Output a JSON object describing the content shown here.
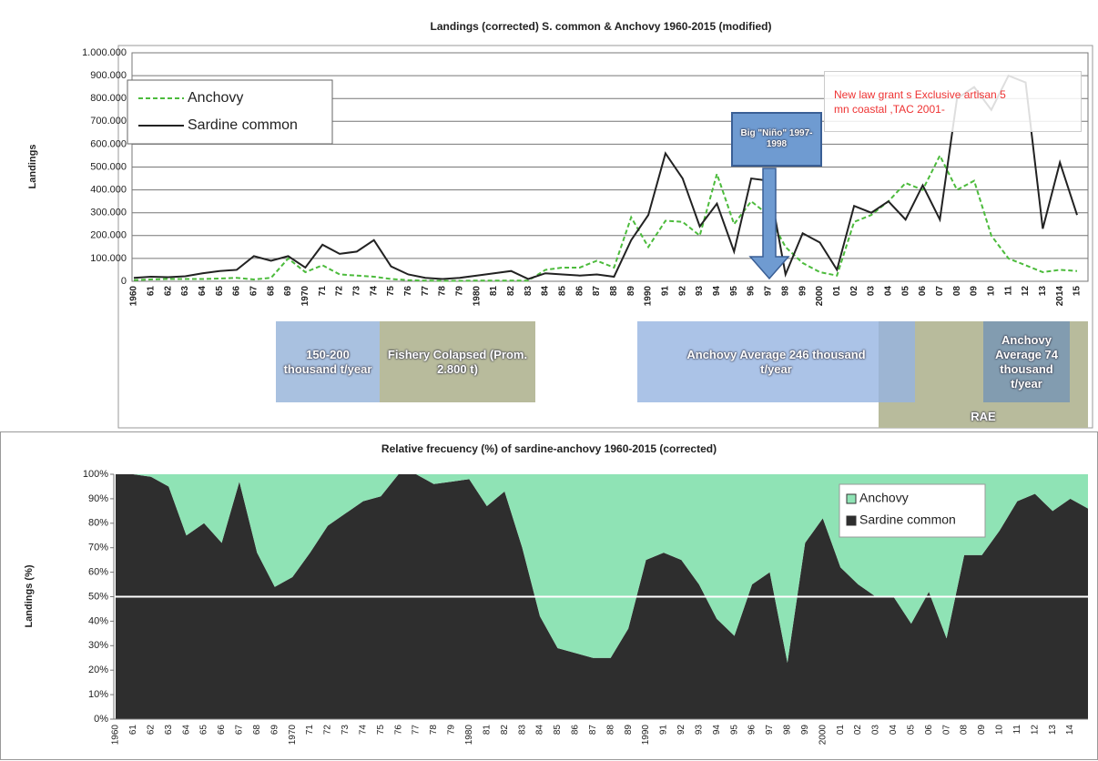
{
  "chart_data": [
    {
      "type": "line",
      "title": "Landings  (corrected) S. common & Anchovy 1960-2015 (modified)",
      "y_label": "Landings",
      "categories": [
        "1960",
        "61",
        "62",
        "63",
        "64",
        "65",
        "66",
        "67",
        "68",
        "69",
        "1970",
        "71",
        "72",
        "73",
        "74",
        "75",
        "76",
        "77",
        "78",
        "79",
        "1980",
        "81",
        "82",
        "83",
        "84",
        "85",
        "86",
        "87",
        "88",
        "89",
        "1990",
        "91",
        "92",
        "93",
        "94",
        "95",
        "96",
        "97",
        "98",
        "99",
        "2000",
        "01",
        "02",
        "03",
        "04",
        "05",
        "06",
        "07",
        "08",
        "09",
        "10",
        "11",
        "12",
        "13",
        "2014",
        "15"
      ],
      "series": [
        {
          "name": "Anchovy",
          "color": "#4cbb3c",
          "style": "dashed",
          "values": [
            5000,
            8000,
            10000,
            10000,
            10000,
            12000,
            15000,
            8000,
            15000,
            100000,
            40000,
            70000,
            30000,
            25000,
            20000,
            10000,
            5000,
            3000,
            2000,
            2000,
            3000,
            3000,
            3000,
            3000,
            50000,
            60000,
            60000,
            90000,
            60000,
            280000,
            150000,
            265000,
            260000,
            200000,
            470000,
            250000,
            350000,
            290000,
            150000,
            80000,
            40000,
            25000,
            260000,
            290000,
            350000,
            430000,
            400000,
            550000,
            400000,
            440000,
            200000,
            100000,
            70000,
            40000,
            50000,
            45000
          ]
        },
        {
          "name": "Sardine common",
          "color": "#222222",
          "style": "solid",
          "values": [
            15000,
            20000,
            18000,
            22000,
            35000,
            45000,
            50000,
            110000,
            90000,
            110000,
            60000,
            160000,
            120000,
            130000,
            180000,
            65000,
            30000,
            15000,
            10000,
            15000,
            25000,
            35000,
            45000,
            10000,
            35000,
            30000,
            25000,
            30000,
            20000,
            180000,
            290000,
            560000,
            450000,
            240000,
            340000,
            130000,
            450000,
            440000,
            30000,
            210000,
            170000,
            50000,
            330000,
            300000,
            350000,
            270000,
            420000,
            270000,
            800000,
            850000,
            750000,
            900000,
            870000,
            230000,
            520000,
            290000
          ]
        }
      ],
      "ylim": [
        0,
        1000000
      ],
      "yticks": [
        0,
        {
          "value": 100000,
          "label": "100.000"
        },
        {
          "value": 200000,
          "label": "200.000"
        },
        {
          "value": 300000,
          "label": "300.000"
        },
        {
          "value": 400000,
          "label": "400.000"
        },
        {
          "value": 500000,
          "label": "500.000"
        },
        {
          "value": 600000,
          "label": "600.000"
        },
        {
          "value": 700000,
          "label": "700.000"
        },
        {
          "value": 800000,
          "label": "800.000"
        },
        {
          "value": 900000,
          "label": "900.000"
        },
        {
          "value": 1000000,
          "label": "1.000.000"
        }
      ],
      "grid": true,
      "legend": "upper left",
      "annotations": [
        "New law grant s Exclusive artisan 5 mn coastal ,TAC 2001-",
        "Big \"Niño\" 1997-1998",
        "150-200 thousand t/year",
        "Fishery Colapsed (Prom. 2.800 t)",
        "Anchovy Average  246 thousand t/year",
        "RAE",
        "Anchovy Average 74 thousand t/year"
      ]
    },
    {
      "type": "stacked_area",
      "title": "Relative  frecuency (%) of sardine-anchovy 1960-2015 (corrected)",
      "y_label": "Landings (%)",
      "categories": [
        "1960",
        "61",
        "62",
        "63",
        "64",
        "65",
        "66",
        "67",
        "68",
        "69",
        "1970",
        "71",
        "72",
        "73",
        "74",
        "75",
        "76",
        "77",
        "78",
        "79",
        "1980",
        "81",
        "82",
        "83",
        "84",
        "85",
        "86",
        "87",
        "88",
        "89",
        "1990",
        "91",
        "92",
        "93",
        "94",
        "95",
        "96",
        "97",
        "98",
        "99",
        "2000",
        "01",
        "02",
        "03",
        "04",
        "05",
        "06",
        "07",
        "08",
        "09",
        "10",
        "11",
        "12",
        "13",
        "14",
        null
      ],
      "series": [
        {
          "name": "Anchovy",
          "color": "#8fe3b5",
          "values": [
            0,
            0,
            1,
            5,
            25,
            20,
            28,
            3,
            32,
            46,
            42,
            32,
            21,
            16,
            11,
            9,
            0,
            0,
            4,
            3,
            2,
            13,
            7,
            30,
            58,
            71,
            73,
            75,
            75,
            63,
            35,
            32,
            35,
            45,
            59,
            66,
            45,
            40,
            77,
            28,
            18,
            38,
            45,
            50,
            50,
            61,
            48,
            67,
            33,
            33,
            23,
            11,
            8,
            15,
            10,
            14
          ]
        },
        {
          "name": "Sardine common",
          "color": "#2e2e2e",
          "values": [
            100,
            100,
            99,
            95,
            75,
            80,
            72,
            97,
            68,
            54,
            58,
            68,
            79,
            84,
            89,
            91,
            100,
            100,
            96,
            97,
            98,
            87,
            93,
            70,
            42,
            29,
            27,
            25,
            25,
            37,
            65,
            68,
            65,
            55,
            41,
            34,
            55,
            60,
            23,
            72,
            82,
            62,
            55,
            50,
            50,
            39,
            52,
            33,
            67,
            67,
            77,
            89,
            92,
            85,
            90,
            86
          ]
        }
      ],
      "ylim": [
        0,
        100
      ],
      "yticks": [
        {
          "value": 0,
          "label": "0%"
        },
        {
          "value": 10,
          "label": "10%"
        },
        {
          "value": 20,
          "label": "20%"
        },
        {
          "value": 30,
          "label": "30%"
        },
        {
          "value": 40,
          "label": "40%"
        },
        {
          "value": 50,
          "label": "50%"
        },
        {
          "value": 60,
          "label": "60%"
        },
        {
          "value": 70,
          "label": "70%"
        },
        {
          "value": 80,
          "label": "80%"
        },
        {
          "value": 90,
          "label": "90%"
        },
        {
          "value": 100,
          "label": "100%"
        }
      ],
      "reference_line": 50,
      "legend": "upper right"
    }
  ]
}
